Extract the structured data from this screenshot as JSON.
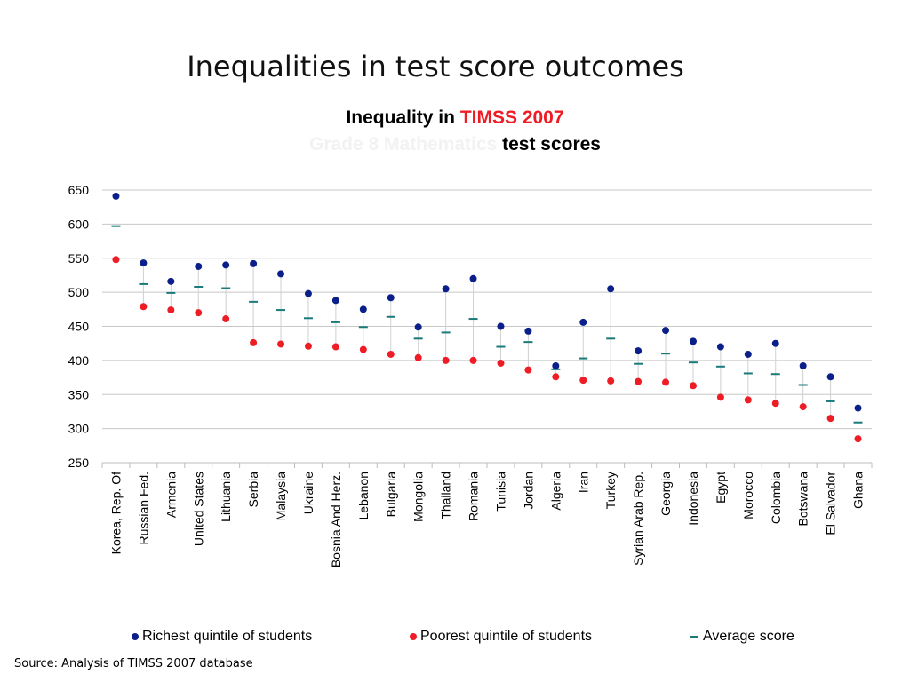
{
  "slide": {
    "title": "Inequalities in test score outcomes",
    "source": "Source: Analysis of TIMSS 2007 database"
  },
  "chart_title": {
    "line1_black": "Inequality in",
    "line1_red": "TIMSS 2007",
    "line2_faint": "Grade 8 Mathematics",
    "line2_black": "test scores"
  },
  "colors": {
    "richest": "#0b1f8a",
    "poorest": "#ee1c24",
    "average": "#1a7a7a",
    "title_red": "#ee1c24",
    "gridline": "#c8c8c8"
  },
  "chart_data": {
    "type": "scatter",
    "categories": [
      "Korea, Rep. Of",
      "Russian Fed.",
      "Armenia",
      "United States",
      "Lithuania",
      "Serbia",
      "Malaysia",
      "Ukraine",
      "Bosnia And Herz.",
      "Lebanon",
      "Bulgaria",
      "Mongolia",
      "Thailand",
      "Romania",
      "Tunisia",
      "Jordan",
      "Algeria",
      "Iran",
      "Turkey",
      "Syrian Arab Rep.",
      "Georgia",
      "Indonesia",
      "Egypt",
      "Morocco",
      "Colombia",
      "Botswana",
      "El Salvador",
      "Ghana"
    ],
    "series": [
      {
        "name": "Richest quintile of students",
        "marker": "dot",
        "values": [
          641,
          543,
          516,
          538,
          540,
          542,
          527,
          498,
          488,
          475,
          492,
          449,
          505,
          520,
          450,
          443,
          392,
          456,
          505,
          414,
          444,
          428,
          420,
          409,
          425,
          392,
          376,
          330
        ]
      },
      {
        "name": "Poorest quintile of students",
        "marker": "dot",
        "values": [
          548,
          479,
          474,
          470,
          461,
          426,
          424,
          421,
          420,
          416,
          409,
          404,
          400,
          400,
          396,
          386,
          376,
          371,
          370,
          369,
          368,
          363,
          346,
          342,
          337,
          332,
          315,
          285
        ]
      },
      {
        "name": "Average score",
        "marker": "dash",
        "values": [
          597,
          512,
          499,
          508,
          506,
          486,
          474,
          462,
          456,
          449,
          464,
          432,
          441,
          461,
          420,
          427,
          387,
          403,
          432,
          395,
          410,
          397,
          391,
          381,
          380,
          364,
          340,
          309
        ]
      }
    ],
    "yticks": [
      250,
      300,
      350,
      400,
      450,
      500,
      550,
      600,
      650
    ],
    "ylim": [
      250,
      650
    ],
    "grid": true,
    "legend_position": "bottom"
  }
}
